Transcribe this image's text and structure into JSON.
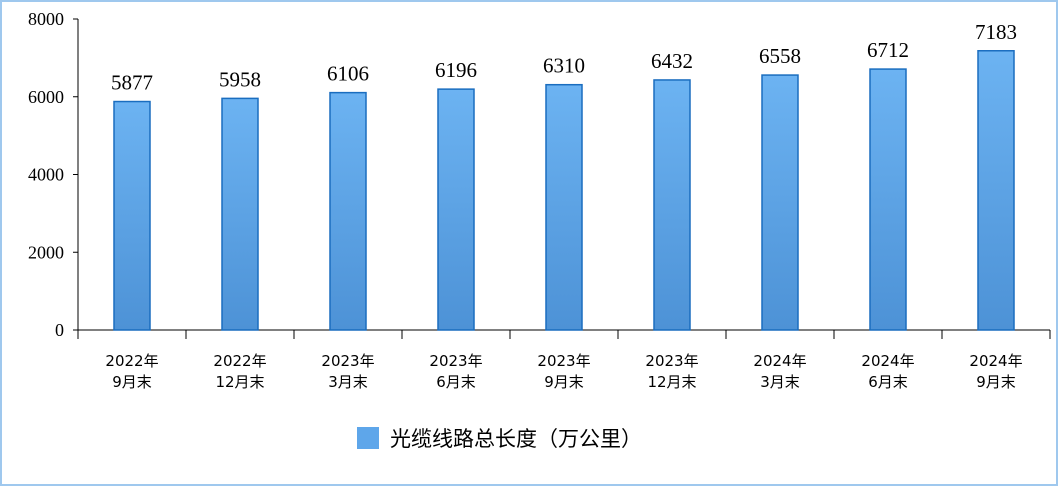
{
  "chart_data": {
    "type": "bar",
    "categories": [
      [
        "2022年",
        "9月末"
      ],
      [
        "2022年",
        "12月末"
      ],
      [
        "2023年",
        "3月末"
      ],
      [
        "2023年",
        "6月末"
      ],
      [
        "2023年",
        "9月末"
      ],
      [
        "2023年",
        "12月末"
      ],
      [
        "2024年",
        "3月末"
      ],
      [
        "2024年",
        "6月末"
      ],
      [
        "2024年",
        "9月末"
      ]
    ],
    "series": [
      {
        "name": "光缆线路总长度（万公里）",
        "color": "#5ea6ea",
        "values": [
          5877,
          5958,
          6106,
          6196,
          6310,
          6432,
          6558,
          6712,
          7183
        ]
      }
    ],
    "ylim": [
      0,
      8000
    ],
    "yticks": [
      0,
      2000,
      4000,
      6000,
      8000
    ],
    "grid": false,
    "legend": "bottom"
  }
}
